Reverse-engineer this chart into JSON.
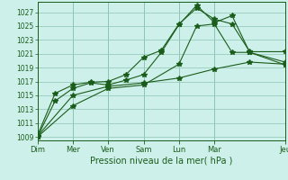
{
  "xlabel": "Pression niveau de la mer( hPa )",
  "background_color": "#cef0ea",
  "grid_color": "#99ccbb",
  "line_color": "#1a5c1a",
  "ylim": [
    1008.5,
    1028.5
  ],
  "yticks": [
    1009,
    1011,
    1013,
    1015,
    1017,
    1019,
    1021,
    1023,
    1025,
    1027
  ],
  "day_tick_positions": [
    0,
    14,
    28,
    42,
    56,
    70,
    98
  ],
  "day_tick_labels": [
    "Dim",
    "Mer",
    "Ven",
    "Sam",
    "Lun",
    "Mar",
    "Jeu"
  ],
  "xmax": 98,
  "series1_x": [
    0,
    7,
    14,
    21,
    28,
    35,
    42,
    49,
    56,
    63,
    70,
    77,
    84,
    98
  ],
  "series1_y": [
    1009.0,
    1014.2,
    1016.0,
    1016.8,
    1016.5,
    1017.2,
    1018.0,
    1021.2,
    1025.2,
    1028.0,
    1025.5,
    1026.5,
    1021.2,
    1019.4
  ],
  "series2_x": [
    0,
    7,
    14,
    21,
    28,
    35,
    42,
    49,
    56,
    63,
    70,
    77,
    84,
    98
  ],
  "series2_y": [
    1009.2,
    1015.3,
    1016.5,
    1016.9,
    1017.0,
    1018.0,
    1020.5,
    1021.5,
    1025.3,
    1027.6,
    1026.0,
    1025.3,
    1021.3,
    1021.3
  ],
  "series3_x": [
    0,
    14,
    28,
    42,
    56,
    70,
    84,
    98
  ],
  "series3_y": [
    1009.1,
    1015.0,
    1016.3,
    1016.8,
    1017.5,
    1018.8,
    1019.8,
    1019.5
  ],
  "series4_x": [
    0,
    14,
    28,
    42,
    56,
    63,
    70,
    77,
    84,
    98
  ],
  "series4_y": [
    1009.0,
    1013.5,
    1016.0,
    1016.5,
    1019.5,
    1025.0,
    1025.3,
    1021.2,
    1021.2,
    1019.8
  ]
}
